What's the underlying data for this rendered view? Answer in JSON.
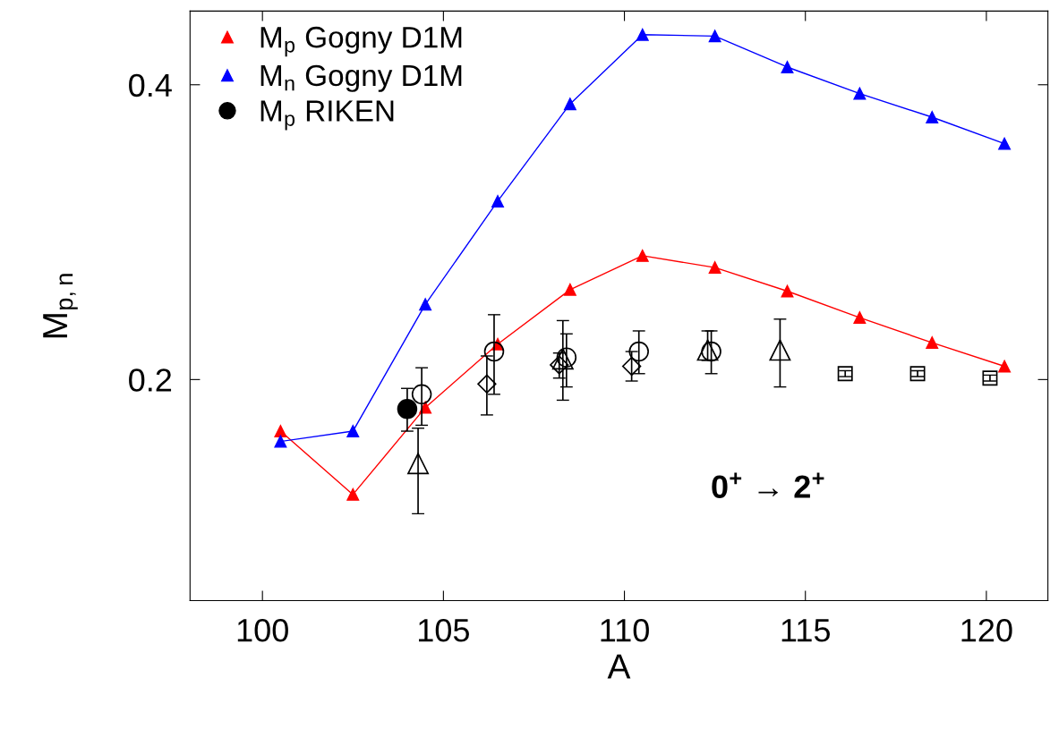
{
  "chart_data": {
    "type": "line",
    "xlabel": "A",
    "ylabel": "M$_{p,n}$",
    "xlim": [
      98,
      121.7
    ],
    "ylim": [
      0.05,
      0.45
    ],
    "xticks": [
      100,
      105,
      110,
      115,
      120
    ],
    "yticks": [
      0.2,
      0.4
    ],
    "grid": false,
    "legend": "top left",
    "annotations": [
      "0$^{+}$ → 2$^{+}$"
    ],
    "series": [
      {
        "name": "M$_{p}$ Gogny D1M",
        "color": "#ff0000",
        "marker": "triangle",
        "x": [
          100.5,
          102.5,
          104.5,
          106.5,
          108.5,
          110.5,
          112.5,
          114.5,
          116.5,
          118.5,
          120.5
        ],
        "values": [
          0.165,
          0.122,
          0.181,
          0.224,
          0.261,
          0.284,
          0.276,
          0.26,
          0.242,
          0.225,
          0.209
        ]
      },
      {
        "name": "M$_{n}$ Gogny D1M",
        "color": "#0000ff",
        "marker": "triangle",
        "x": [
          100.5,
          102.5,
          104.5,
          106.5,
          108.5,
          110.5,
          112.5,
          114.5,
          116.5,
          118.5,
          120.5
        ],
        "values": [
          0.158,
          0.165,
          0.251,
          0.321,
          0.387,
          0.434,
          0.433,
          0.412,
          0.394,
          0.378,
          0.36
        ]
      },
      {
        "name": "M$_{p}$ RIKEN",
        "type": "scatter",
        "color": "#000000",
        "marker": "circle",
        "x": [
          104.0
        ],
        "values": [
          0.18
        ],
        "errors": [
          [
            0.165,
            0.194
          ]
        ]
      },
      {
        "type": "scatter",
        "color": "#000000",
        "marker": "circle",
        "x": [
          104.4,
          106.4,
          108.4,
          110.4,
          112.4
        ],
        "values": [
          0.19,
          0.219,
          0.215,
          0.219,
          0.219
        ],
        "errors": [
          [
            0.169,
            0.208
          ],
          [
            0.19,
            0.244
          ],
          [
            0.195,
            0.231
          ],
          [
            0.204,
            0.233
          ],
          [
            0.204,
            0.233
          ]
        ]
      },
      {
        "type": "scatter",
        "color": "#000000",
        "marker": "triangle",
        "x": [
          104.3,
          108.3,
          112.3,
          114.3
        ],
        "values": [
          0.143,
          0.214,
          0.22,
          0.22
        ],
        "errors": [
          [
            0.109,
            0.167
          ],
          [
            0.186,
            0.24
          ],
          [
            0.213,
            0.233
          ],
          [
            0.195,
            0.241
          ]
        ]
      },
      {
        "type": "scatter",
        "color": "#000000",
        "marker": "diamond",
        "x": [
          106.2,
          108.2,
          110.2
        ],
        "values": [
          0.197,
          0.21,
          0.209
        ],
        "errors": [
          [
            0.176,
            0.216
          ],
          [
            0.201,
            0.218
          ],
          [
            0.199,
            0.219
          ]
        ]
      },
      {
        "type": "scatter",
        "color": "#000000",
        "marker": "square",
        "x": [
          116.1,
          118.1,
          120.1
        ],
        "values": [
          0.204,
          0.204,
          0.201
        ],
        "errors": [
          [
            0.202,
            0.206
          ],
          [
            0.202,
            0.206
          ],
          [
            0.199,
            0.203
          ]
        ]
      }
    ]
  }
}
